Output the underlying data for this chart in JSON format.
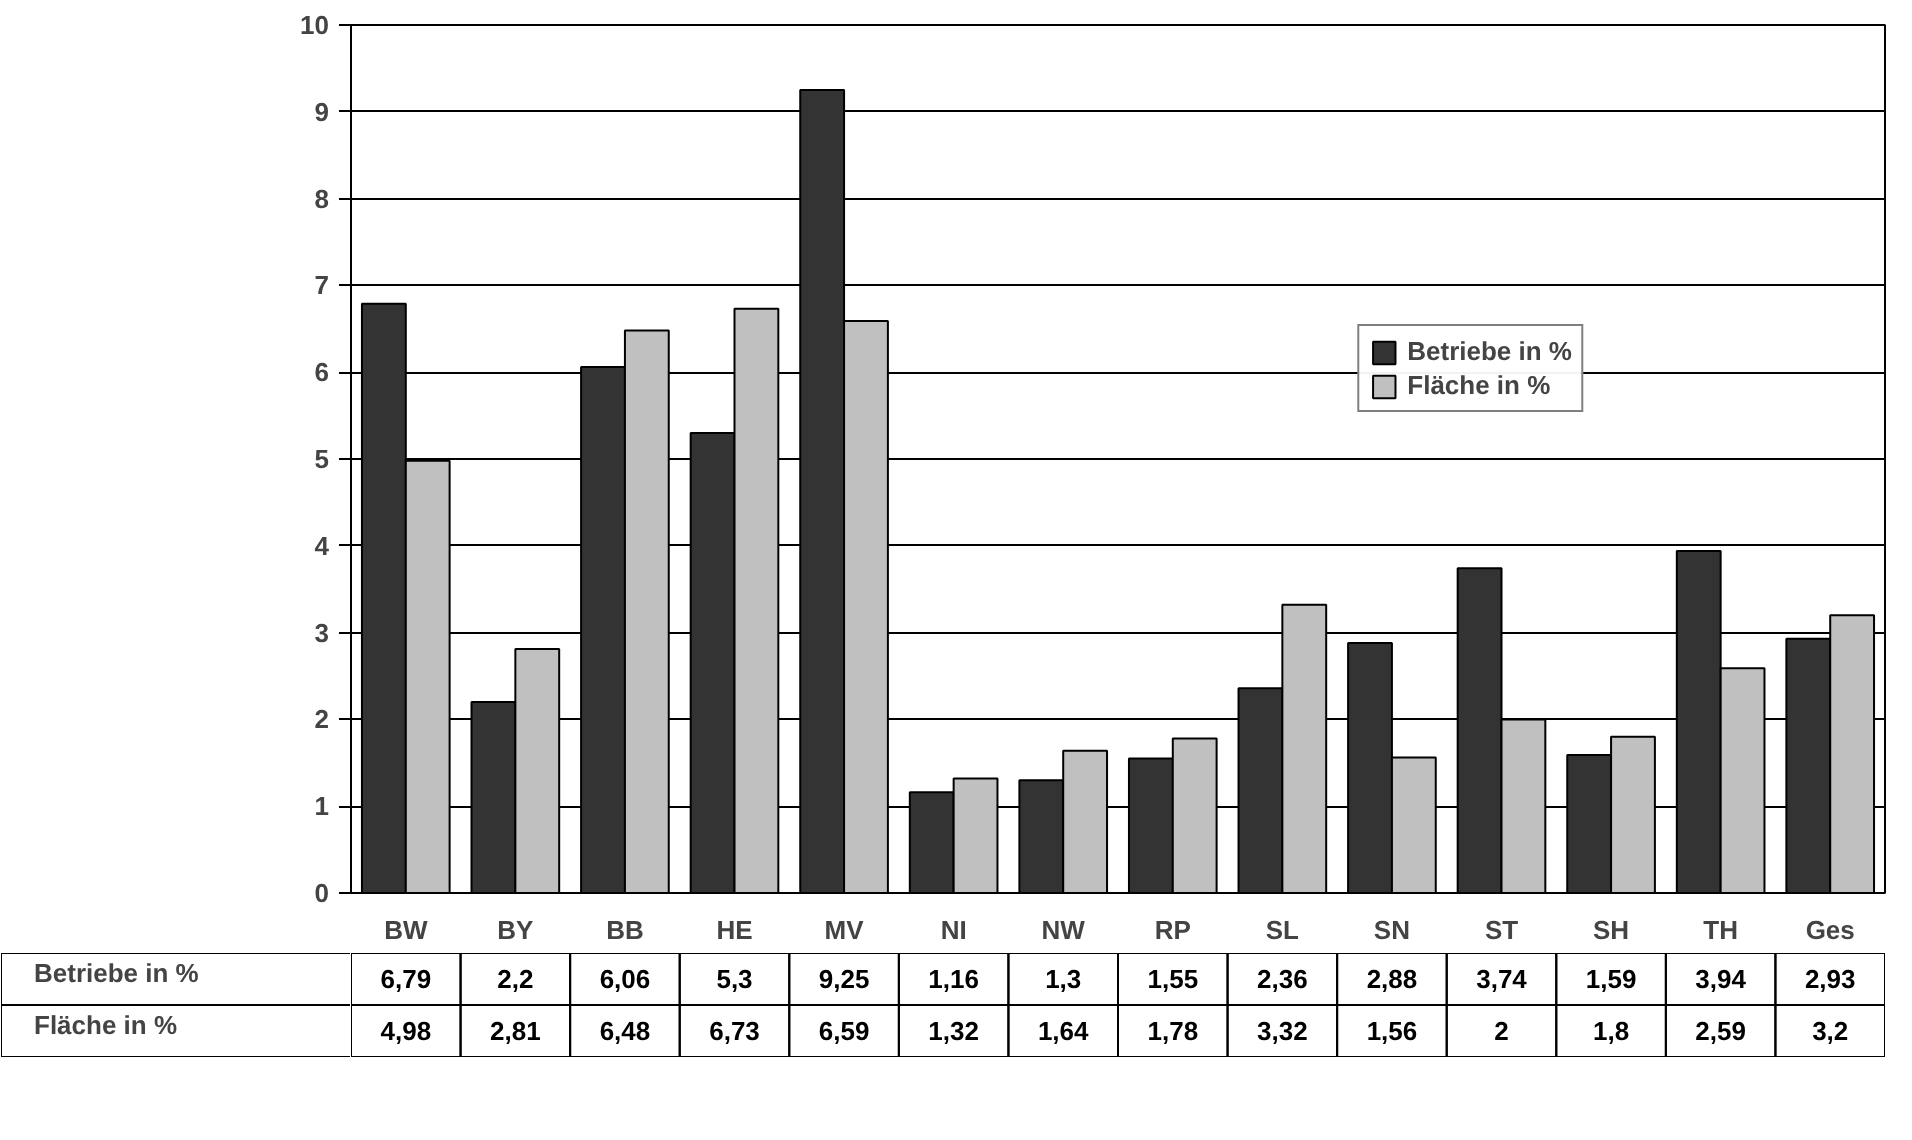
{
  "chart_data": {
    "type": "bar",
    "categories": [
      "BW",
      "BY",
      "BB",
      "HE",
      "MV",
      "NI",
      "NW",
      "RP",
      "SL",
      "SN",
      "ST",
      "SH",
      "TH",
      "Ges"
    ],
    "series": [
      {
        "name": "Betriebe in %",
        "color": "#333333",
        "values": [
          6.79,
          2.2,
          6.06,
          5.3,
          9.25,
          1.16,
          1.3,
          1.55,
          2.36,
          2.88,
          3.74,
          1.59,
          3.94,
          2.93
        ],
        "value_labels": [
          "6,79",
          "2,2",
          "6,06",
          "5,3",
          "9,25",
          "1,16",
          "1,3",
          "1,55",
          "2,36",
          "2,88",
          "3,74",
          "1,59",
          "3,94",
          "2,93"
        ]
      },
      {
        "name": "Fläche in %",
        "color": "#c0c0c0",
        "values": [
          4.98,
          2.81,
          6.48,
          6.73,
          6.59,
          1.32,
          1.64,
          1.78,
          3.32,
          1.56,
          2,
          1.8,
          2.59,
          3.2
        ],
        "value_labels": [
          "4,98",
          "2,81",
          "6,48",
          "6,73",
          "6,59",
          "1,32",
          "1,64",
          "1,78",
          "3,32",
          "1,56",
          "2",
          "1,8",
          "2,59",
          "3,2"
        ]
      }
    ],
    "ylim": [
      0,
      10
    ],
    "yticks": [
      0,
      1,
      2,
      3,
      4,
      5,
      6,
      7,
      8,
      9,
      10
    ],
    "grid": "y",
    "legend": "top right"
  }
}
